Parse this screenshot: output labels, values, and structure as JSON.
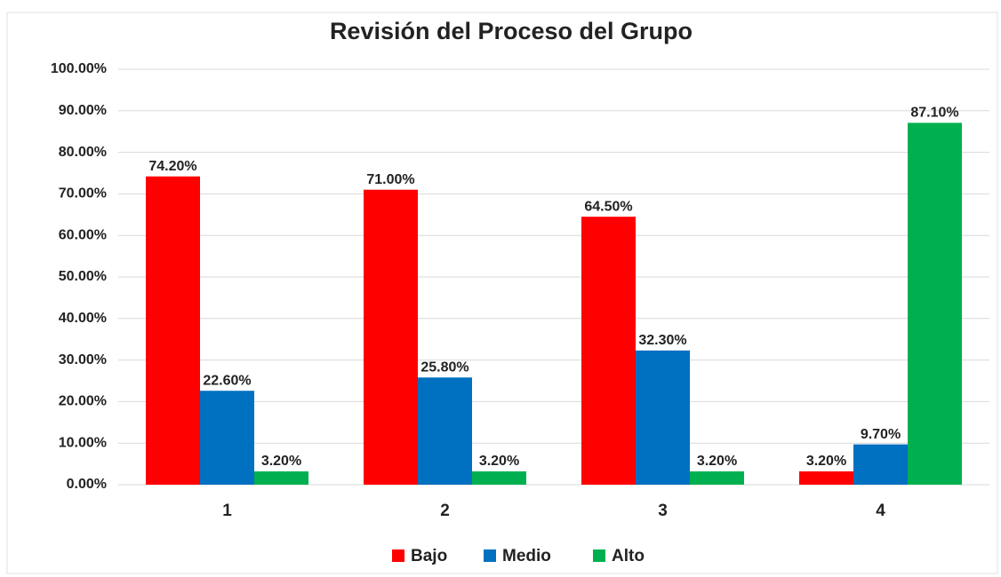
{
  "chart_data": {
    "type": "bar",
    "title": "Revisión del Proceso del Grupo",
    "categories": [
      "1",
      "2",
      "3",
      "4"
    ],
    "series": [
      {
        "name": "Bajo",
        "color": "#ff0000",
        "values": [
          74.2,
          71.0,
          64.5,
          3.2
        ],
        "value_labels": [
          "74.20%",
          "71.00%",
          "64.50%",
          "3.20%"
        ]
      },
      {
        "name": "Medio",
        "color": "#0070c0",
        "values": [
          22.6,
          25.8,
          32.3,
          9.7
        ],
        "value_labels": [
          "22.60%",
          "25.80%",
          "32.30%",
          "9.70%"
        ]
      },
      {
        "name": "Alto",
        "color": "#00b050",
        "values": [
          3.2,
          3.2,
          3.2,
          87.1
        ],
        "value_labels": [
          "3.20%",
          "3.20%",
          "3.20%",
          "87.10%"
        ]
      }
    ],
    "ylim": [
      0,
      100
    ],
    "yticks": [
      {
        "value": 0,
        "label": "0.00%"
      },
      {
        "value": 10,
        "label": "10.00%"
      },
      {
        "value": 20,
        "label": "20.00%"
      },
      {
        "value": 30,
        "label": "30.00%"
      },
      {
        "value": 40,
        "label": "40.00%"
      },
      {
        "value": 50,
        "label": "50.00%"
      },
      {
        "value": 60,
        "label": "60.00%"
      },
      {
        "value": 70,
        "label": "70.00%"
      },
      {
        "value": 80,
        "label": "80.00%"
      },
      {
        "value": 90,
        "label": "90.00%"
      },
      {
        "value": 100,
        "label": "100.00%"
      }
    ],
    "grid": true,
    "legend": "bottom"
  }
}
